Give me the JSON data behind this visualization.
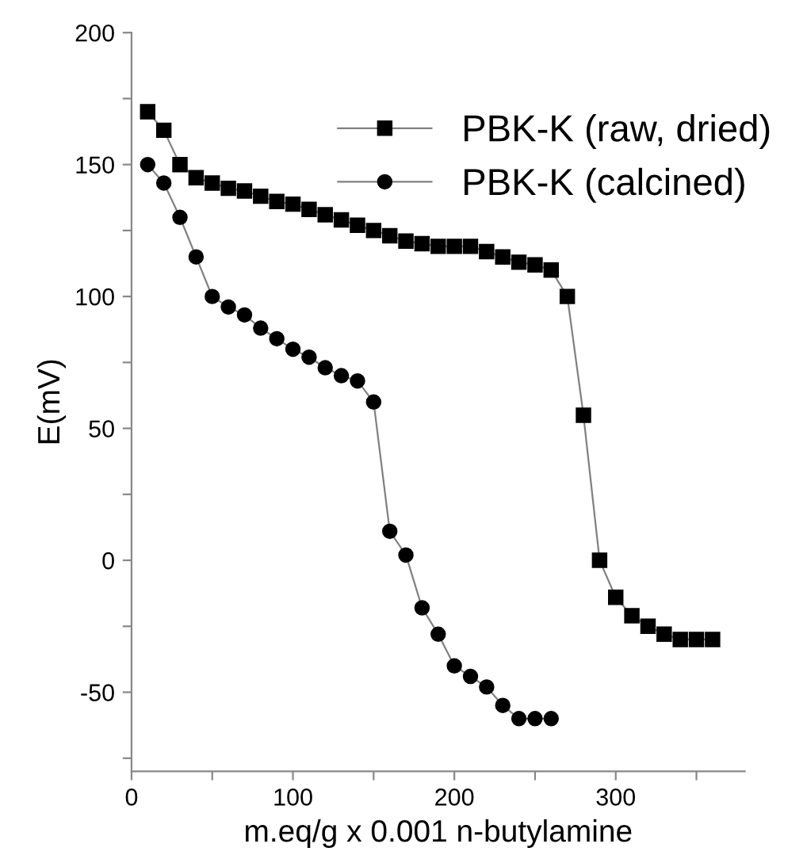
{
  "chart_data": {
    "type": "line",
    "xlabel": "m.eq/g x 0.001 n-butylamine",
    "ylabel": "E(mV)",
    "xlim": [
      0,
      380
    ],
    "ylim": [
      -80,
      200
    ],
    "xticks": [
      0,
      {
        "value": 50,
        "label": null
      },
      100,
      {
        "value": 150,
        "label": null
      },
      200,
      {
        "value": 250,
        "label": null
      },
      300,
      {
        "value": 350,
        "label": null
      }
    ],
    "yticks": [
      {
        "value": -75,
        "label": null
      },
      -50,
      {
        "value": -25,
        "label": null
      },
      0,
      {
        "value": 25,
        "label": null
      },
      50,
      {
        "value": 75,
        "label": null
      },
      100,
      {
        "value": 125,
        "label": null
      },
      150,
      {
        "value": 175,
        "label": null
      },
      200
    ],
    "grid": false,
    "legend": "top right",
    "line_style": "solid",
    "series": [
      {
        "name": "PBK-K (raw, dried)",
        "color": "#000000",
        "marker": "square",
        "x": [
          10,
          20,
          30,
          40,
          50,
          60,
          70,
          80,
          90,
          100,
          110,
          120,
          130,
          140,
          150,
          160,
          170,
          180,
          190,
          200,
          210,
          220,
          230,
          240,
          250,
          260,
          270,
          280,
          290,
          300,
          310,
          320,
          330,
          340,
          350,
          360
        ],
        "values": [
          170,
          163,
          150,
          145,
          143,
          141,
          140,
          138,
          136,
          135,
          133,
          131,
          129,
          127,
          125,
          123,
          121,
          120,
          119,
          119,
          119,
          117,
          115,
          113,
          112,
          110,
          100,
          55,
          0,
          -14,
          -21,
          -25,
          -28,
          -30,
          -30,
          -30
        ]
      },
      {
        "name": "PBK-K (calcined)",
        "color": "#000000",
        "marker": "circle",
        "x": [
          10,
          20,
          30,
          40,
          50,
          60,
          70,
          80,
          90,
          100,
          110,
          120,
          130,
          140,
          150,
          160,
          170,
          180,
          190,
          200,
          210,
          220,
          230,
          240,
          250,
          260
        ],
        "values": [
          150,
          143,
          130,
          115,
          100,
          96,
          93,
          88,
          84,
          80,
          77,
          73,
          70,
          68,
          60,
          11,
          2,
          -18,
          -28,
          -40,
          -44,
          -48,
          -55,
          -60,
          -60,
          -60
        ]
      }
    ]
  }
}
